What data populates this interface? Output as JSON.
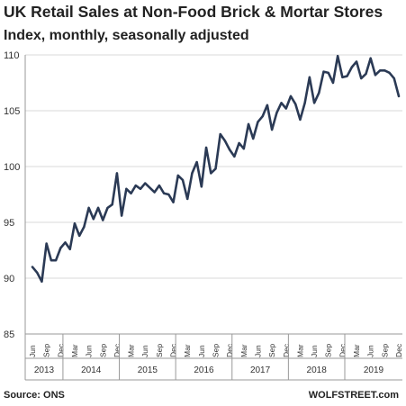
{
  "header": {
    "title": "UK Retail Sales at Non-Food Brick & Mortar Stores",
    "subtitle": "Index, monthly, seasonally adjusted"
  },
  "footer": {
    "source": "Source: ONS",
    "credit": "WOLFSTREET.com"
  },
  "chart_data": {
    "type": "line",
    "title": "UK Retail Sales at Non-Food Brick & Mortar Stores",
    "subtitle": "Index, monthly, seasonally adjusted",
    "xlabel": "",
    "ylabel": "",
    "ylim": [
      85,
      110
    ],
    "yticks": [
      85,
      90,
      95,
      100,
      105,
      110
    ],
    "grid": "horizontal",
    "line_color": "#2b3a55",
    "month_ticks": [
      "Jun",
      "Sep",
      "Dec",
      "Mar",
      "Jun",
      "Sep",
      "Dec",
      "Mar",
      "Jun",
      "Sep",
      "Dec",
      "Mar",
      "Jun",
      "Sep",
      "Dec",
      "Mar",
      "Jun",
      "Sep",
      "Dec",
      "Mar",
      "Jun",
      "Sep",
      "Dec",
      "Mar",
      "Jun",
      "Sep",
      "Dec"
    ],
    "years": [
      "2013",
      "2014",
      "2015",
      "2016",
      "2017",
      "2018",
      "2019"
    ],
    "x": [
      "2013-06",
      "2013-07",
      "2013-08",
      "2013-09",
      "2013-10",
      "2013-11",
      "2013-12",
      "2014-01",
      "2014-02",
      "2014-03",
      "2014-04",
      "2014-05",
      "2014-06",
      "2014-07",
      "2014-08",
      "2014-09",
      "2014-10",
      "2014-11",
      "2014-12",
      "2015-01",
      "2015-02",
      "2015-03",
      "2015-04",
      "2015-05",
      "2015-06",
      "2015-07",
      "2015-08",
      "2015-09",
      "2015-10",
      "2015-11",
      "2015-12",
      "2016-01",
      "2016-02",
      "2016-03",
      "2016-04",
      "2016-05",
      "2016-06",
      "2016-07",
      "2016-08",
      "2016-09",
      "2016-10",
      "2016-11",
      "2016-12",
      "2017-01",
      "2017-02",
      "2017-03",
      "2017-04",
      "2017-05",
      "2017-06",
      "2017-07",
      "2017-08",
      "2017-09",
      "2017-10",
      "2017-11",
      "2017-12",
      "2018-01",
      "2018-02",
      "2018-03",
      "2018-04",
      "2018-05",
      "2018-06",
      "2018-07",
      "2018-08",
      "2018-09",
      "2018-10",
      "2018-11",
      "2018-12",
      "2019-01",
      "2019-02",
      "2019-03",
      "2019-04",
      "2019-05",
      "2019-06",
      "2019-07",
      "2019-08",
      "2019-09",
      "2019-10",
      "2019-11",
      "2019-12"
    ],
    "series": [
      {
        "name": "",
        "values": [
          91.0,
          90.5,
          89.7,
          93.1,
          91.6,
          91.6,
          92.7,
          93.2,
          92.6,
          94.9,
          93.8,
          94.6,
          96.3,
          95.3,
          96.3,
          95.2,
          96.3,
          96.6,
          99.4,
          95.6,
          98.0,
          97.6,
          98.3,
          98.0,
          98.5,
          98.1,
          97.7,
          98.3,
          97.6,
          97.5,
          96.8,
          99.2,
          98.8,
          97.1,
          99.4,
          100.4,
          98.2,
          101.7,
          99.4,
          99.8,
          102.9,
          102.3,
          101.5,
          100.9,
          102.1,
          101.6,
          103.8,
          102.5,
          104.0,
          104.5,
          105.5,
          103.3,
          104.8,
          105.7,
          105.2,
          106.3,
          105.6,
          104.2,
          105.7,
          108.0,
          105.7,
          106.6,
          108.5,
          108.4,
          107.5,
          109.9,
          108.0,
          108.1,
          108.9,
          109.4,
          107.9,
          108.3,
          109.7,
          108.2,
          108.6,
          108.6,
          108.4,
          107.9,
          106.3
        ]
      }
    ]
  }
}
